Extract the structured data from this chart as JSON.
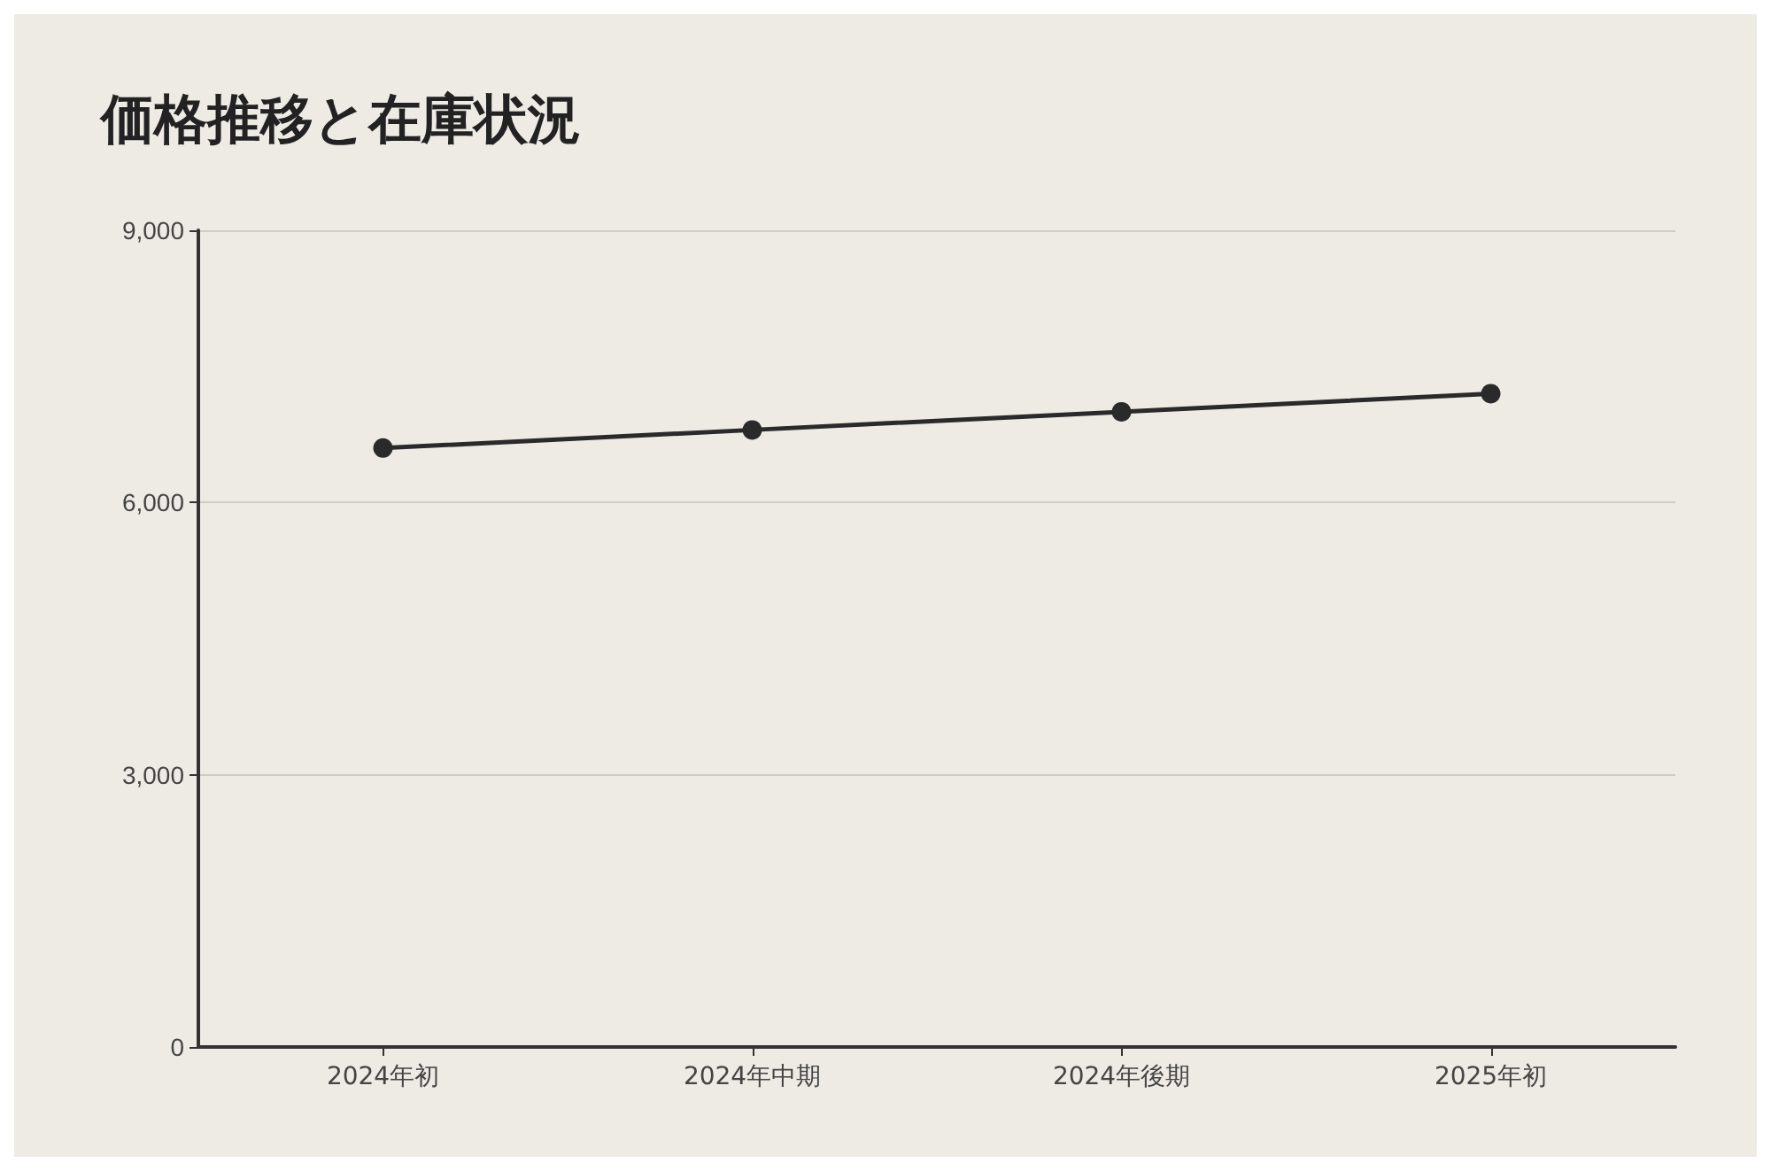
{
  "chart_data": {
    "type": "line",
    "title": "価格推移と在庫状況",
    "categories": [
      "2024年初",
      "2024年中期",
      "2024年後期",
      "2025年初"
    ],
    "series": [
      {
        "color": "#2a2a2a",
        "values": [
          6600,
          6800,
          7000,
          7200
        ]
      }
    ],
    "ylim": [
      0,
      9000
    ],
    "yticks": [
      0,
      {
        "value": 3000,
        "label": "3,000"
      },
      {
        "value": 6000,
        "label": "6,000"
      },
      {
        "value": 9000,
        "label": "9,000"
      }
    ],
    "grid": "y",
    "marker": "circle",
    "line_style": "solid"
  }
}
